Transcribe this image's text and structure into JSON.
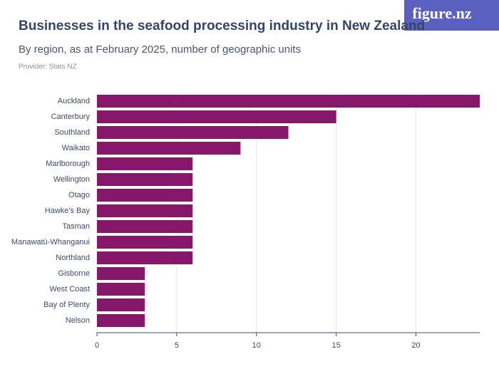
{
  "logo": "figure.nz",
  "chart_data": {
    "type": "bar",
    "orientation": "horizontal",
    "title": "Businesses in the seafood processing industry in New Zealand",
    "subtitle": "By region, as at February 2025, number of geographic units",
    "provider": "Provider: Stats NZ",
    "categories": [
      "Auckland",
      "Canterbury",
      "Southland",
      "Waikato",
      "Marlborough",
      "Wellington",
      "Otago",
      "Hawke's Bay",
      "Tasman",
      "Manawatū-Whanganui",
      "Northland",
      "Gisborne",
      "West Coast",
      "Bay of Plenty",
      "Nelson"
    ],
    "values": [
      24,
      15,
      12,
      9,
      6,
      6,
      6,
      6,
      6,
      6,
      6,
      3,
      3,
      3,
      3
    ],
    "color": "#86176b",
    "xlim": [
      0,
      24
    ],
    "xticks": [
      0,
      5,
      10,
      15,
      20
    ],
    "grid": true
  }
}
